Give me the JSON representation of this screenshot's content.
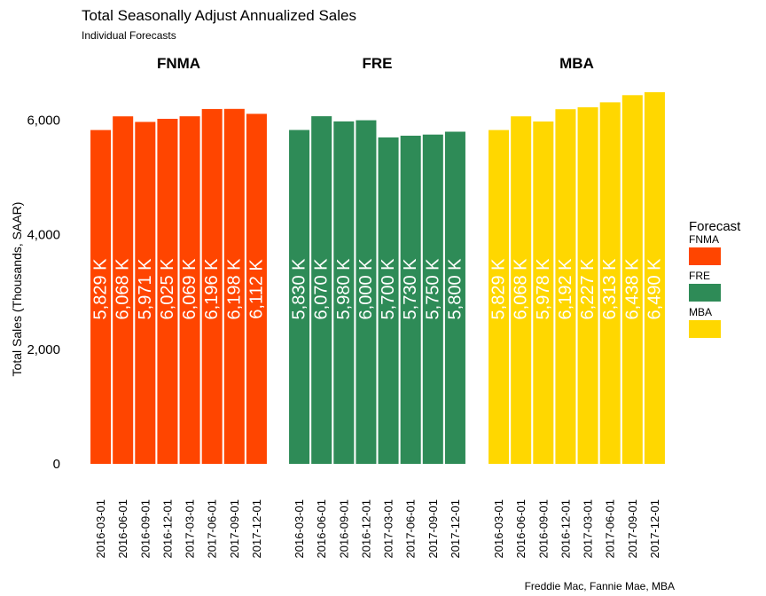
{
  "chart_data": {
    "type": "bar",
    "title": "Total Seasonally Adjust Annualized Sales",
    "subtitle": "Individual Forecasts",
    "ylabel": "Total Sales (Thousands, SAAR)",
    "caption": "Freddie Mac, Fannie Mae, MBA",
    "ylim": [
      0,
      6700
    ],
    "yticks": [
      0,
      2000,
      4000,
      6000
    ],
    "ytick_labels": [
      "0",
      "2,000",
      "4,000",
      "6,000"
    ],
    "grid": false,
    "categories": [
      "2016-03-01",
      "2016-06-01",
      "2016-09-01",
      "2016-12-01",
      "2017-03-01",
      "2017-06-01",
      "2017-09-01",
      "2017-12-01"
    ],
    "legend": {
      "title": "Forecast",
      "placement": "right",
      "entries": [
        "FNMA",
        "FRE",
        "MBA"
      ]
    },
    "series": [
      {
        "name": "FNMA",
        "color": "#FF4500",
        "values": [
          5829,
          6068,
          5971,
          6025,
          6069,
          6196,
          6198,
          6112
        ],
        "labels": [
          "5,829 K",
          "6,068 K",
          "5,971 K",
          "6,025 K",
          "6,069 K",
          "6,196 K",
          "6,198 K",
          "6,112 K"
        ]
      },
      {
        "name": "FRE",
        "color": "#2E8B57",
        "values": [
          5830,
          6070,
          5980,
          6000,
          5700,
          5730,
          5750,
          5800
        ],
        "labels": [
          "5,830 K",
          "6,070 K",
          "5,980 K",
          "6,000 K",
          "5,700 K",
          "5,730 K",
          "5,750 K",
          "5,800 K"
        ]
      },
      {
        "name": "MBA",
        "color": "#FFD700",
        "values": [
          5829,
          6068,
          5978,
          6192,
          6227,
          6313,
          6438,
          6490
        ],
        "labels": [
          "5,829 K",
          "6,068 K",
          "5,978 K",
          "6,192 K",
          "6,227 K",
          "6,313 K",
          "6,438 K",
          "6,490 K"
        ]
      }
    ]
  }
}
